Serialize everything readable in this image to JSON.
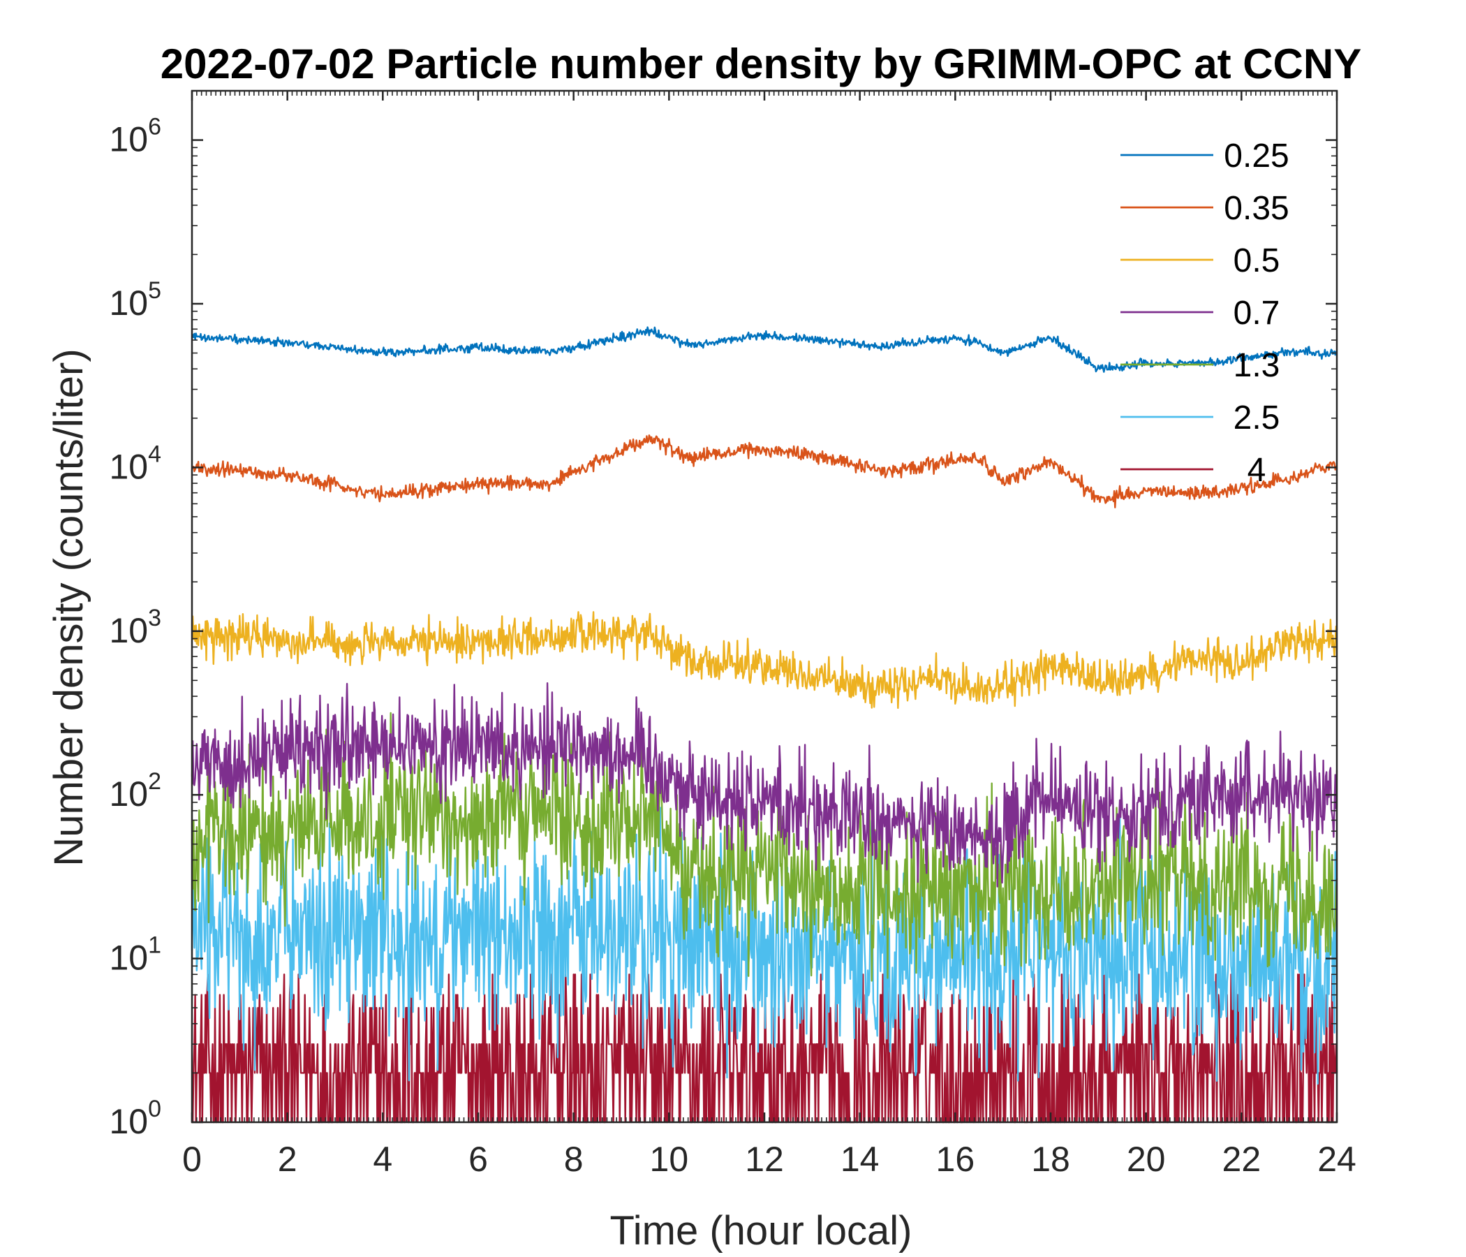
{
  "chart_data": {
    "type": "line",
    "title": "2022-07-02 Particle number density by GRIMM-OPC at CCNY",
    "xlabel": "Time (hour local)",
    "ylabel": "Number density (counts/liter)",
    "xlim": [
      0,
      24
    ],
    "ylim": [
      1,
      2000000
    ],
    "yscale": "log",
    "xticks": [
      0,
      2,
      4,
      6,
      8,
      10,
      12,
      14,
      16,
      18,
      20,
      22,
      24
    ],
    "xtick_labels": [
      "0",
      "2",
      "4",
      "6",
      "8",
      "10",
      "12",
      "14",
      "16",
      "18",
      "20",
      "22",
      "24"
    ],
    "ytick_exponents": [
      "0",
      "1",
      "2",
      "3",
      "4",
      "5",
      "6"
    ],
    "ytick_base": "10",
    "legend_position": "top-right",
    "grid": false,
    "series": [
      {
        "name": "0.25",
        "color": "#0072BD",
        "noise": 0.03,
        "x": [
          0,
          2,
          4,
          6,
          7.5,
          8.5,
          9.6,
          10.5,
          11.8,
          13,
          14.5,
          16,
          16.5,
          17,
          18,
          19,
          20,
          21.5,
          23,
          24
        ],
        "y": [
          63000,
          58000,
          50000,
          54000,
          51000,
          58000,
          68000,
          55000,
          64000,
          61000,
          55000,
          62000,
          58000,
          50000,
          62000,
          40000,
          43000,
          44000,
          51000,
          49000
        ]
      },
      {
        "name": "0.35",
        "color": "#D95319",
        "noise": 0.05,
        "x": [
          0,
          2,
          4,
          6,
          7.5,
          8.5,
          9.6,
          10.5,
          11.8,
          13,
          14.5,
          16,
          16.5,
          17,
          18,
          19,
          20,
          21.5,
          23,
          24
        ],
        "y": [
          10000,
          9000,
          6800,
          8000,
          8000,
          11000,
          15000,
          11500,
          13000,
          12000,
          9500,
          11000,
          11500,
          8000,
          11000,
          6500,
          7000,
          7000,
          8500,
          10500
        ]
      },
      {
        "name": "0.5",
        "color": "#EDB120",
        "noise": 0.14,
        "x": [
          0,
          2,
          4,
          6,
          8,
          9.6,
          10.5,
          12,
          13,
          14.5,
          15.5,
          16.5,
          17,
          18,
          19,
          20,
          21,
          22,
          23,
          24
        ],
        "y": [
          950,
          900,
          820,
          870,
          950,
          1000,
          650,
          620,
          520,
          450,
          520,
          430,
          450,
          630,
          480,
          550,
          700,
          650,
          850,
          900
        ]
      },
      {
        "name": "0.7",
        "color": "#7E2F8E",
        "noise": 0.35,
        "x": [
          0,
          2,
          4,
          6,
          8,
          9.6,
          10.5,
          12,
          14,
          15,
          16.5,
          17,
          18,
          19,
          20,
          22,
          24
        ],
        "y": [
          150,
          180,
          190,
          200,
          210,
          170,
          100,
          95,
          70,
          65,
          60,
          60,
          100,
          70,
          90,
          100,
          100
        ]
      },
      {
        "name": "1.3",
        "color": "#77AC30",
        "noise": 0.5,
        "x": [
          0,
          2,
          4,
          6,
          8,
          9.6,
          10.5,
          12,
          14,
          16,
          18,
          20,
          22,
          24
        ],
        "y": [
          50,
          60,
          70,
          75,
          75,
          70,
          35,
          32,
          25,
          25,
          30,
          30,
          30,
          25
        ]
      },
      {
        "name": "2.5",
        "color": "#4DBEEE",
        "noise": 0.7,
        "x": [
          0,
          2,
          4,
          6,
          8,
          10,
          12,
          14,
          16,
          18,
          20,
          22,
          24
        ],
        "y": [
          15,
          14,
          14,
          15,
          15,
          13,
          11,
          10,
          10,
          11,
          11,
          10,
          9
        ]
      },
      {
        "name": "4",
        "color": "#A2142F",
        "noise": 0,
        "discrete": true,
        "x": [
          0,
          24
        ],
        "y": [
          2,
          2
        ]
      }
    ]
  }
}
